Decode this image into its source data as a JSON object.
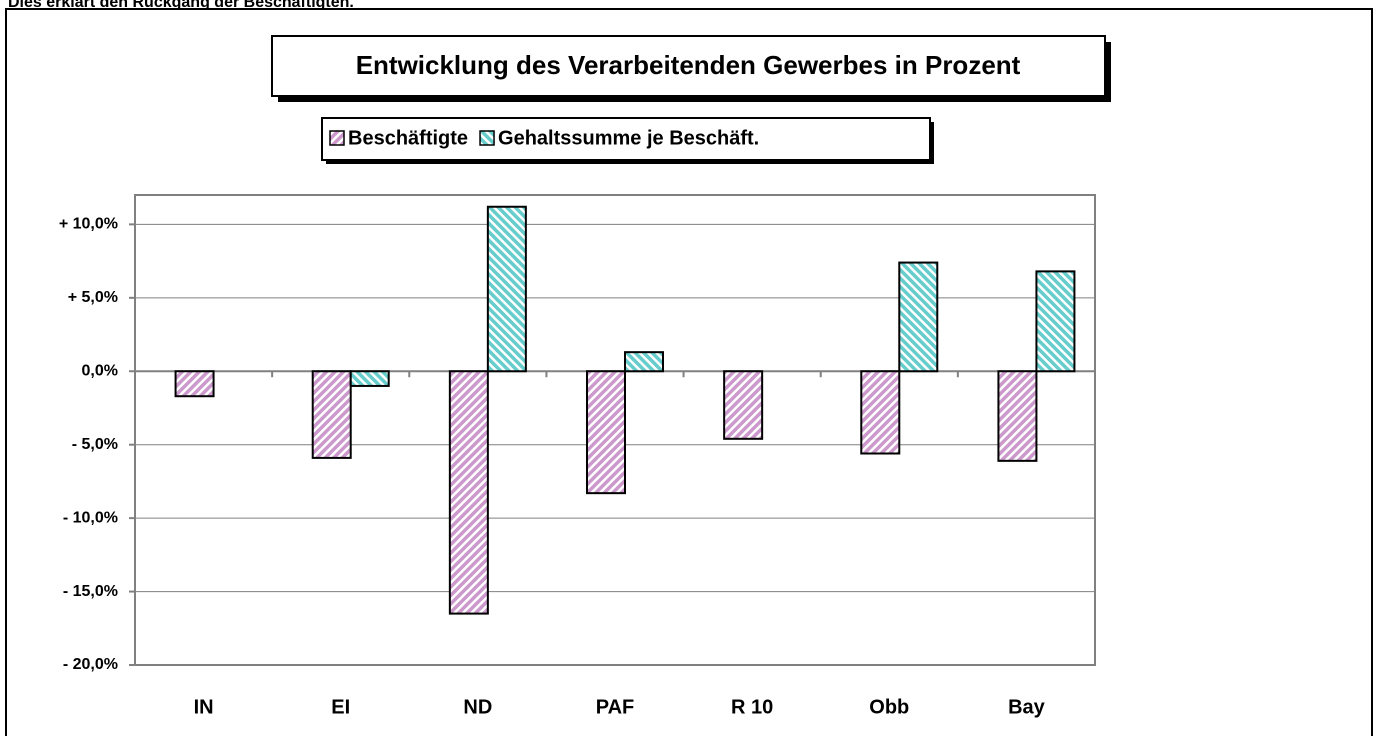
{
  "header": "Dies erklärt den Rückgang der Beschäftigten.",
  "chart_data": {
    "type": "bar",
    "title": "Entwicklung des Verarbeitenden Gewerbes in Prozent",
    "categories": [
      "IN",
      "EI",
      "ND",
      "PAF",
      "R 10",
      "Obb",
      "Bay"
    ],
    "series": [
      {
        "name": "Beschäftigte",
        "color": "#cc99cc",
        "values": [
          -1.7,
          -5.9,
          -16.5,
          -8.3,
          -4.6,
          -5.6,
          -6.1
        ]
      },
      {
        "name": "Gehaltssumme je Beschäft.",
        "color": "#66cccc",
        "values": [
          null,
          -1.0,
          11.2,
          1.3,
          null,
          7.4,
          6.8
        ]
      }
    ],
    "ylim": [
      -20,
      12
    ],
    "yticks": [
      {
        "value": -20,
        "label": "- 20,0%"
      },
      {
        "value": -15,
        "label": "- 15,0%"
      },
      {
        "value": -10,
        "label": "- 10,0%"
      },
      {
        "value": -5,
        "label": "- 5,0%"
      },
      {
        "value": 0,
        "label": "0,0%"
      },
      {
        "value": 5,
        "label": "+ 5,0%"
      },
      {
        "value": 10,
        "label": "+ 10,0%"
      }
    ],
    "grid": true,
    "legend": "top"
  }
}
